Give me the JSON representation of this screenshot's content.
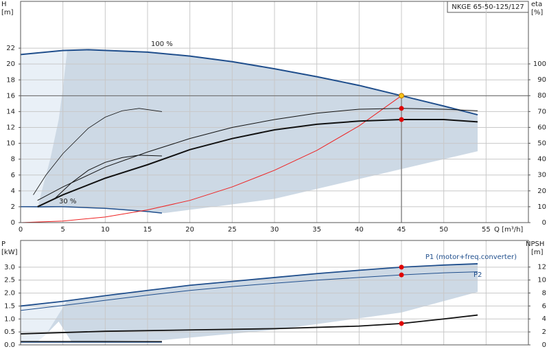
{
  "chart_data": [
    {
      "type": "line",
      "title": "NKGE 65-50-125/127",
      "xlim": [
        0,
        60
      ],
      "xticks": [
        0,
        5,
        10,
        15,
        20,
        25,
        30,
        35,
        40,
        45,
        50,
        55
      ],
      "xlabel": "Q [m³/h]",
      "ylabel": "H",
      "yunit": "[m]",
      "ylim": [
        0,
        27.9
      ],
      "yticks": [
        0,
        2,
        4,
        6,
        8,
        10,
        12,
        14,
        16,
        18,
        20,
        22
      ],
      "y2label": "eta",
      "y2unit": "[%]",
      "y2lim": [
        0,
        139.4
      ],
      "y2ticks": [
        0,
        10,
        20,
        30,
        40,
        50,
        60,
        70,
        80,
        90,
        100
      ],
      "grid": true,
      "annotations": [
        "100 %",
        "30 %"
      ],
      "regions": [
        {
          "color": "#e9f0f7",
          "x": [
            0,
            5.5,
            5,
            4.5,
            3.5,
            2.5,
            2,
            0
          ],
          "y": [
            21.2,
            21.7,
            17,
            13,
            8,
            4,
            1.8,
            2
          ]
        },
        {
          "color": "#cdd9e5",
          "x": [
            5.5,
            8,
            15,
            20,
            25,
            30,
            35,
            40,
            45,
            50,
            54,
            54,
            40,
            30,
            25,
            17,
            10,
            5,
            2,
            2.5,
            3.5,
            4.5,
            5
          ],
          "y": [
            21.7,
            21.8,
            21.5,
            21,
            20.3,
            19.4,
            18.4,
            17.3,
            16,
            14.7,
            13.6,
            9,
            5.5,
            3,
            2.3,
            1.2,
            1.8,
            2,
            1.8,
            4,
            8,
            13,
            17
          ]
        }
      ],
      "series": [
        {
          "color": "#1f4e8c",
          "width": 2,
          "x": [
            0,
            5,
            8,
            15,
            20,
            25,
            30,
            35,
            40,
            45,
            50,
            54
          ],
          "values": [
            21.2,
            21.7,
            21.8,
            21.5,
            21,
            20.3,
            19.4,
            18.4,
            17.3,
            16,
            14.7,
            13.6
          ]
        },
        {
          "color": "#1f4e8c",
          "width": 1.5,
          "x": [
            0,
            5,
            10,
            15,
            16.7
          ],
          "values": [
            2,
            2,
            1.8,
            1.4,
            1.2
          ]
        },
        {
          "color": "#ee2222",
          "width": 1,
          "x": [
            0,
            5,
            10,
            15,
            20,
            25,
            30,
            35,
            40,
            45
          ],
          "values": [
            0,
            0.2,
            0.7,
            1.6,
            2.8,
            4.5,
            6.6,
            9.1,
            12.2,
            16
          ]
        },
        {
          "color": "#111111",
          "width": 1,
          "x": [
            2,
            5,
            10,
            15,
            20,
            25,
            30,
            35,
            40,
            45,
            50,
            54
          ],
          "values": [
            2.8,
            4.5,
            7,
            8.9,
            10.6,
            12,
            13,
            13.8,
            14.3,
            14.4,
            14.3,
            14.1
          ]
        },
        {
          "color": "#111111",
          "width": 2,
          "x": [
            2,
            5,
            10,
            15,
            20,
            25,
            30,
            35,
            40,
            45,
            50,
            54
          ],
          "values": [
            2,
            3.5,
            5.6,
            7.3,
            9.2,
            10.6,
            11.7,
            12.4,
            12.8,
            13,
            13,
            12.7
          ]
        },
        {
          "color": "#111111",
          "width": 0.8,
          "x": [
            1.5,
            3,
            5,
            8,
            10,
            12,
            14,
            16.7
          ],
          "values": [
            3.5,
            6,
            8.7,
            11.9,
            13.3,
            14.1,
            14.4,
            14
          ]
        },
        {
          "color": "#111111",
          "width": 1,
          "x": [
            4,
            6,
            8,
            10,
            12,
            14,
            16.7
          ],
          "values": [
            3,
            5,
            6.6,
            7.6,
            8.2,
            8.5,
            8.4
          ]
        }
      ],
      "points": [
        {
          "x": 45,
          "y": 16,
          "color": "#f5c518",
          "guides": true
        },
        {
          "x": 45,
          "y": 14.4,
          "color": "#e00000"
        },
        {
          "x": 45,
          "y": 13,
          "color": "#e00000"
        }
      ]
    },
    {
      "type": "line",
      "xlim": [
        0,
        60
      ],
      "ylabel": "P",
      "yunit": "[kW]",
      "ylim": [
        0,
        4.03
      ],
      "yticks": [
        {
          "value": 0,
          "label": "0.0"
        },
        0.5,
        {
          "value": 1,
          "label": "1.0"
        },
        1.5,
        {
          "value": 2,
          "label": "2.0"
        },
        2.5,
        {
          "value": 3,
          "label": "3.0"
        }
      ],
      "y2label": "NPSH",
      "y2unit": "[m]",
      "y2lim": [
        0,
        16.1
      ],
      "y2ticks": [
        0,
        2,
        4,
        6,
        8,
        10,
        12
      ],
      "grid": true,
      "annotations": [
        "P1 (motor+freq.converter)",
        "P2"
      ],
      "regions": [
        {
          "color": "#e9f0f7",
          "x": [
            0,
            5.5,
            4.5,
            3,
            2,
            0
          ],
          "y": [
            1.5,
            1.7,
            0.9,
            0.4,
            0.13,
            0.13
          ]
        },
        {
          "color": "#cdd9e5",
          "x": [
            5.5,
            10,
            15,
            20,
            25,
            30,
            35,
            40,
            45,
            50,
            54,
            54,
            45,
            30,
            17,
            6,
            4.5,
            3
          ],
          "y": [
            1.7,
            1.9,
            2.1,
            2.3,
            2.45,
            2.6,
            2.75,
            2.88,
            3,
            3.08,
            3.13,
            2.04,
            1.25,
            0.58,
            0.19,
            0.13,
            0.9,
            0.4
          ]
        }
      ],
      "series": [
        {
          "color": "#1f4e8c",
          "width": 1.8,
          "x": [
            0,
            5,
            10,
            15,
            20,
            25,
            30,
            35,
            40,
            45,
            50,
            54
          ],
          "values": [
            1.5,
            1.68,
            1.9,
            2.1,
            2.3,
            2.45,
            2.6,
            2.75,
            2.88,
            3,
            3.08,
            3.13
          ]
        },
        {
          "color": "#1f4e8c",
          "width": 1,
          "x": [
            0,
            5,
            10,
            15,
            20,
            25,
            30,
            35,
            40,
            45,
            50,
            54
          ],
          "values": [
            1.33,
            1.52,
            1.72,
            1.92,
            2.1,
            2.25,
            2.38,
            2.5,
            2.6,
            2.7,
            2.78,
            2.82
          ]
        },
        {
          "color": "#111111",
          "width": 1.8,
          "axis": "y2",
          "x": [
            0,
            10,
            20,
            30,
            40,
            45,
            50,
            54
          ],
          "values": [
            1.7,
            2.1,
            2.3,
            2.5,
            2.9,
            3.3,
            4,
            4.6
          ]
        },
        {
          "color": "#111111",
          "width": 1.5,
          "x": [
            0,
            16.7
          ],
          "values": [
            0.13,
            0.13
          ]
        },
        {
          "color": "#1f4e8c",
          "width": 1,
          "x": [
            0,
            16.7
          ],
          "values": [
            0.1,
            0.1
          ]
        }
      ],
      "points": [
        {
          "x": 45,
          "y": 3,
          "color": "#e00000"
        },
        {
          "x": 45,
          "y": 2.7,
          "color": "#e00000"
        },
        {
          "x": 45,
          "y": 3.3,
          "color": "#e00000",
          "axis": "y2"
        }
      ]
    }
  ]
}
